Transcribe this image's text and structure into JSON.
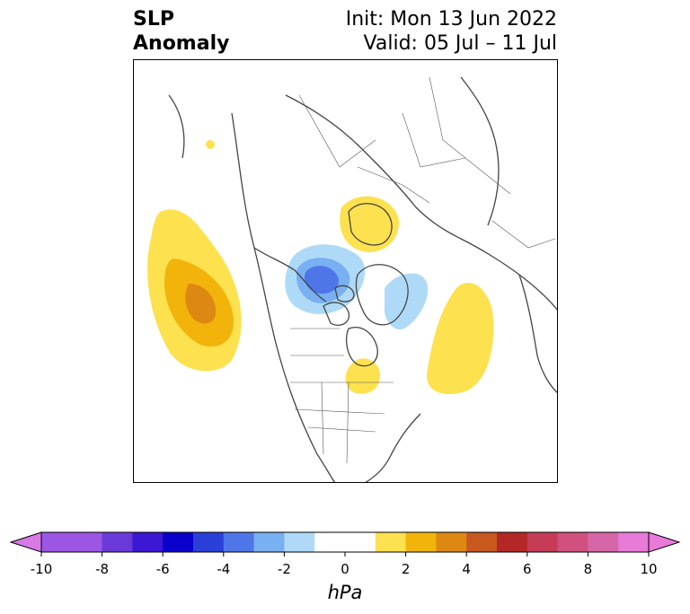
{
  "title": {
    "left_lines": [
      "SLP",
      "Anomaly"
    ],
    "init": "Init: Mon 13 Jun 2022",
    "valid": "Valid: 05 Jul – 11 Jul"
  },
  "colorbar": {
    "units": "hPa",
    "ticks": [
      "-10",
      "-8",
      "-6",
      "-4",
      "-2",
      "0",
      "2",
      "4",
      "6",
      "8",
      "10"
    ],
    "tick_values": [
      -10,
      -8,
      -6,
      -4,
      -2,
      0,
      2,
      4,
      6,
      8,
      10
    ],
    "extend": "both",
    "under_color": "#d77ae6",
    "over_color": "#e87ad8",
    "bins": [
      {
        "from": -10,
        "to": -9,
        "color": "#9b56e3"
      },
      {
        "from": -9,
        "to": -8,
        "color": "#9b56e3"
      },
      {
        "from": -8,
        "to": -7,
        "color": "#6a3ad9"
      },
      {
        "from": -7,
        "to": -6,
        "color": "#3d18d4"
      },
      {
        "from": -6,
        "to": -5,
        "color": "#0a00cc"
      },
      {
        "from": -5,
        "to": -4,
        "color": "#2a3fd8"
      },
      {
        "from": -4,
        "to": -3,
        "color": "#4f76e8"
      },
      {
        "from": -3,
        "to": -2,
        "color": "#79b0f2"
      },
      {
        "from": -2,
        "to": -1,
        "color": "#aedaf8"
      },
      {
        "from": -1,
        "to": 1,
        "color": "#ffffff"
      },
      {
        "from": 1,
        "to": 2,
        "color": "#fde14f"
      },
      {
        "from": 2,
        "to": 3,
        "color": "#f2b40a"
      },
      {
        "from": 3,
        "to": 4,
        "color": "#dd8812"
      },
      {
        "from": 4,
        "to": 5,
        "color": "#c8581e"
      },
      {
        "from": 5,
        "to": 6,
        "color": "#b32826"
      },
      {
        "from": 6,
        "to": 7,
        "color": "#c63c56"
      },
      {
        "from": 7,
        "to": 8,
        "color": "#d1517e"
      },
      {
        "from": 8,
        "to": 9,
        "color": "#d766a8"
      },
      {
        "from": 9,
        "to": 10,
        "color": "#e87ad8"
      }
    ]
  },
  "map": {
    "projection": "north-polar-stereographic",
    "coastline_color": "#444444",
    "anomaly_features": [
      {
        "region": "North Pacific",
        "peak_hpa": 4
      },
      {
        "region": "Scandinavia / Barents",
        "peak_hpa": 2
      },
      {
        "region": "Beaufort Sea / Canadian Arctic",
        "peak_hpa": -5
      },
      {
        "region": "Greenland",
        "peak_hpa": -2
      },
      {
        "region": "North Atlantic",
        "peak_hpa": 2
      },
      {
        "region": "Great Lakes",
        "peak_hpa": 2
      }
    ]
  }
}
